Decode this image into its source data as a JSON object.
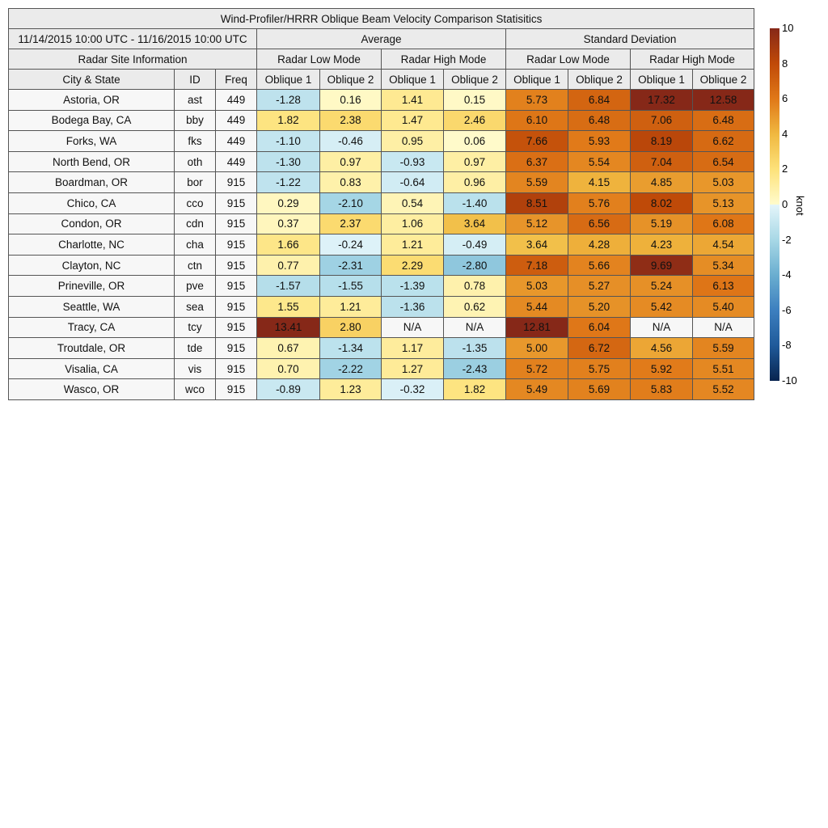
{
  "title": "Wind-Profiler/HRRR Oblique Beam Velocity Comparison Statisitics",
  "date_range": "11/14/2015 10:00 UTC - 11/16/2015 10:00 UTC",
  "groups": {
    "average": "Average",
    "std": "Standard Deviation",
    "site_info": "Radar Site Information",
    "low": "Radar Low Mode",
    "high": "Radar High Mode"
  },
  "columns": [
    "City & State",
    "ID",
    "Freq",
    "Oblique 1",
    "Oblique 2",
    "Oblique 1",
    "Oblique 2",
    "Oblique 1",
    "Oblique 2",
    "Oblique 1",
    "Oblique 2"
  ],
  "colorbar": {
    "label": "knot",
    "ticks": [
      "10",
      "8",
      "6",
      "4",
      "2",
      "0",
      "-2",
      "-4",
      "-6",
      "-8",
      "-10"
    ],
    "range": [
      -10,
      10
    ]
  },
  "chart_data": {
    "type": "table",
    "rows": [
      [
        "Astoria, OR",
        "ast",
        "449",
        "-1.28",
        "0.16",
        "1.41",
        "0.15",
        "5.73",
        "6.84",
        "17.32",
        "12.58"
      ],
      [
        "Bodega Bay, CA",
        "bby",
        "449",
        "1.82",
        "2.38",
        "1.47",
        "2.46",
        "6.10",
        "6.48",
        "7.06",
        "6.48"
      ],
      [
        "Forks, WA",
        "fks",
        "449",
        "-1.10",
        "-0.46",
        "0.95",
        "0.06",
        "7.66",
        "5.93",
        "8.19",
        "6.62"
      ],
      [
        "North Bend, OR",
        "oth",
        "449",
        "-1.30",
        "0.97",
        "-0.93",
        "0.97",
        "6.37",
        "5.54",
        "7.04",
        "6.54"
      ],
      [
        "Boardman, OR",
        "bor",
        "915",
        "-1.22",
        "0.83",
        "-0.64",
        "0.96",
        "5.59",
        "4.15",
        "4.85",
        "5.03"
      ],
      [
        "Chico, CA",
        "cco",
        "915",
        "0.29",
        "-2.10",
        "0.54",
        "-1.40",
        "8.51",
        "5.76",
        "8.02",
        "5.13"
      ],
      [
        "Condon, OR",
        "cdn",
        "915",
        "0.37",
        "2.37",
        "1.06",
        "3.64",
        "5.12",
        "6.56",
        "5.19",
        "6.08"
      ],
      [
        "Charlotte, NC",
        "cha",
        "915",
        "1.66",
        "-0.24",
        "1.21",
        "-0.49",
        "3.64",
        "4.28",
        "4.23",
        "4.54"
      ],
      [
        "Clayton, NC",
        "ctn",
        "915",
        "0.77",
        "-2.31",
        "2.29",
        "-2.80",
        "7.18",
        "5.66",
        "9.69",
        "5.34"
      ],
      [
        "Prineville, OR",
        "pve",
        "915",
        "-1.57",
        "-1.55",
        "-1.39",
        "0.78",
        "5.03",
        "5.27",
        "5.24",
        "6.13"
      ],
      [
        "Seattle, WA",
        "sea",
        "915",
        "1.55",
        "1.21",
        "-1.36",
        "0.62",
        "5.44",
        "5.20",
        "5.42",
        "5.40"
      ],
      [
        "Tracy, CA",
        "tcy",
        "915",
        "13.41",
        "2.80",
        "N/A",
        "N/A",
        "12.81",
        "6.04",
        "N/A",
        "N/A"
      ],
      [
        "Troutdale, OR",
        "tde",
        "915",
        "0.67",
        "-1.34",
        "1.17",
        "-1.35",
        "5.00",
        "6.72",
        "4.56",
        "5.59"
      ],
      [
        "Visalia, CA",
        "vis",
        "915",
        "0.70",
        "-2.22",
        "1.27",
        "-2.43",
        "5.72",
        "5.75",
        "5.92",
        "5.51"
      ],
      [
        "Wasco, OR",
        "wco",
        "915",
        "-0.89",
        "1.23",
        "-0.32",
        "1.82",
        "5.49",
        "5.69",
        "5.83",
        "5.52"
      ]
    ]
  }
}
